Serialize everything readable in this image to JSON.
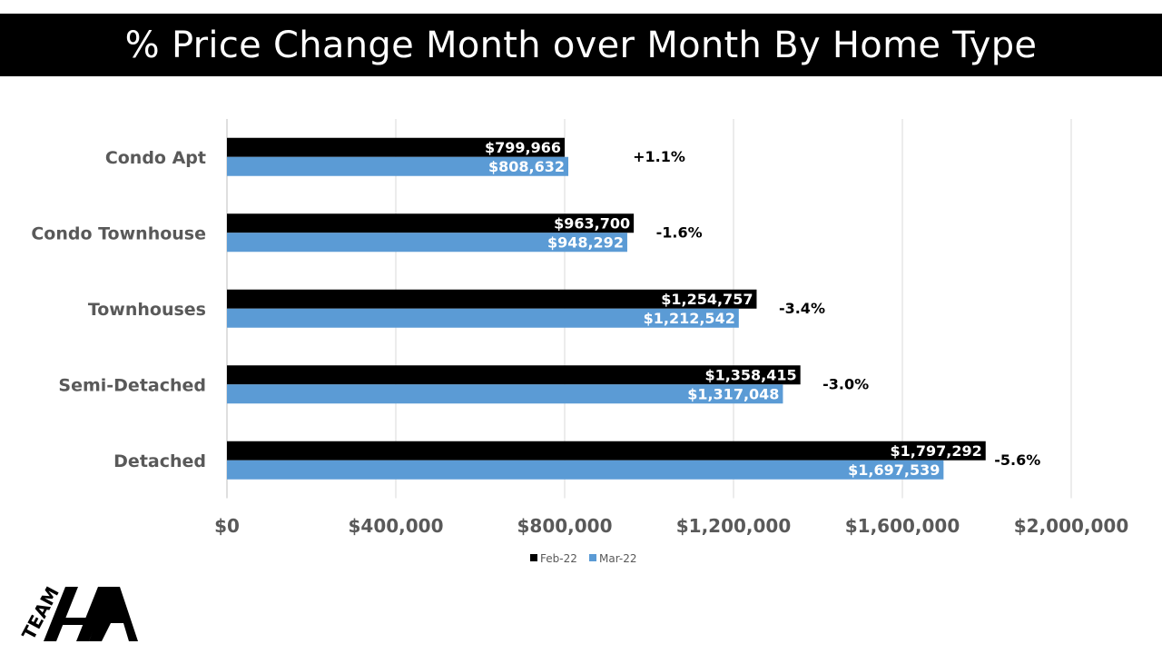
{
  "title": "% Price Change Month over Month By Home Type",
  "logo": {
    "text": "TEAM"
  },
  "colors": {
    "feb": "#000000",
    "mar": "#5b9bd5",
    "grid": "#d9d9d9",
    "axis_text": "#595959"
  },
  "chart_data": {
    "type": "bar",
    "orientation": "horizontal",
    "title": "% Price Change Month over Month By Home Type",
    "categories": [
      "Condo Apt",
      "Condo Townhouse",
      "Townhouses",
      "Semi-Detached",
      "Detached"
    ],
    "series": [
      {
        "name": "Feb-22",
        "values": [
          799966,
          963700,
          1254757,
          1358415,
          1797292
        ],
        "labels": [
          "$799,966",
          "$963,700",
          "$1,254,757",
          "$1,358,415",
          "$1,797,292"
        ]
      },
      {
        "name": "Mar-22",
        "values": [
          808632,
          948292,
          1212542,
          1317048,
          1697539
        ],
        "labels": [
          "$808,632",
          "$948,292",
          "$1,212,542",
          "$1,317,048",
          "$1,697,539"
        ]
      }
    ],
    "annotations": [
      "+1.1%",
      "-1.6%",
      "-3.4%",
      "-3.0%",
      "-5.6%"
    ],
    "xlim": [
      0,
      2000000
    ],
    "xticks": [
      0,
      400000,
      800000,
      1200000,
      1600000,
      2000000
    ],
    "xtick_labels": [
      "$0",
      "$400,000",
      "$800,000",
      "$1,200,000",
      "$1,600,000",
      "$2,000,000"
    ],
    "grid": true,
    "legend": "bottom"
  }
}
